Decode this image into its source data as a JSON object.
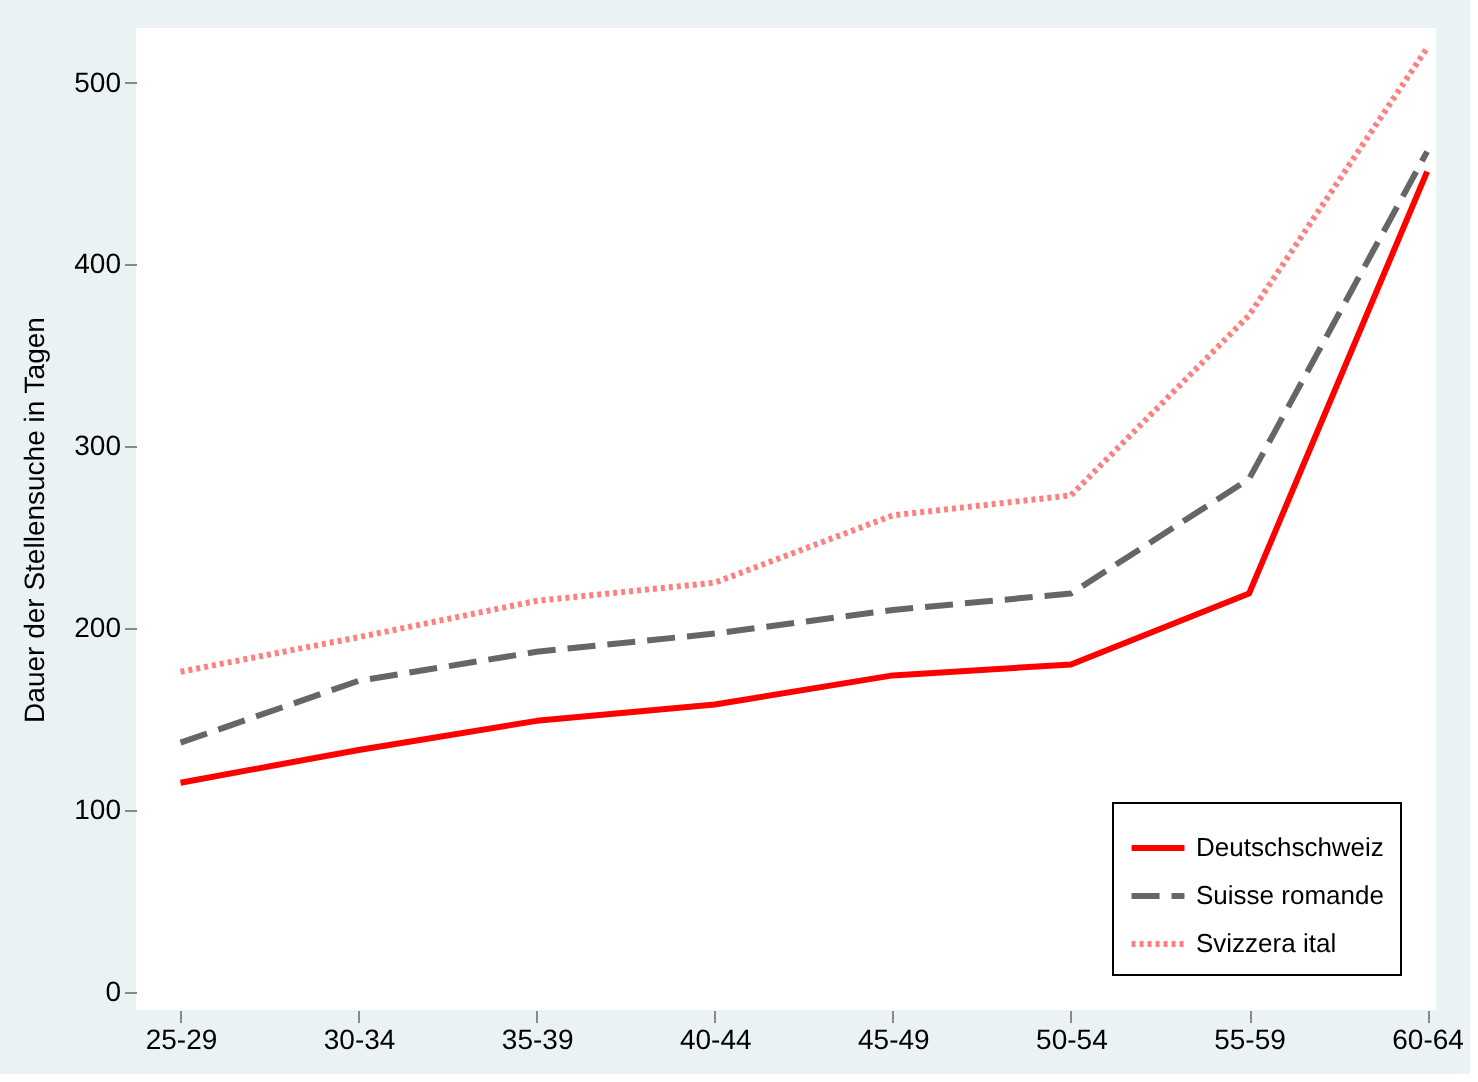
{
  "chart_data": {
    "type": "line",
    "ylabel": "Dauer der Stellensuche in Tagen",
    "categories": [
      "25-29",
      "30-34",
      "35-39",
      "40-44",
      "45-49",
      "50-54",
      "55-59",
      "60-64"
    ],
    "series": [
      {
        "name": "Deutschschweiz",
        "color": "#ff0000",
        "line_style": "solid",
        "values": [
          115,
          133,
          149,
          158,
          174,
          180,
          219,
          451
        ]
      },
      {
        "name": "Suisse romande",
        "color": "#666666",
        "line_style": "dashed",
        "values": [
          137,
          171,
          187,
          197,
          210,
          219,
          282,
          462
        ]
      },
      {
        "name": "Svizzera ital",
        "color": "#ff8080",
        "line_style": "dotted",
        "values": [
          176,
          195,
          215,
          225,
          262,
          273,
          372,
          519
        ]
      }
    ],
    "ylim": [
      -10,
      530
    ],
    "yticks": [
      0,
      100,
      200,
      300,
      400,
      500
    ],
    "grid": false,
    "legend": "bottom right",
    "marker": "none"
  }
}
